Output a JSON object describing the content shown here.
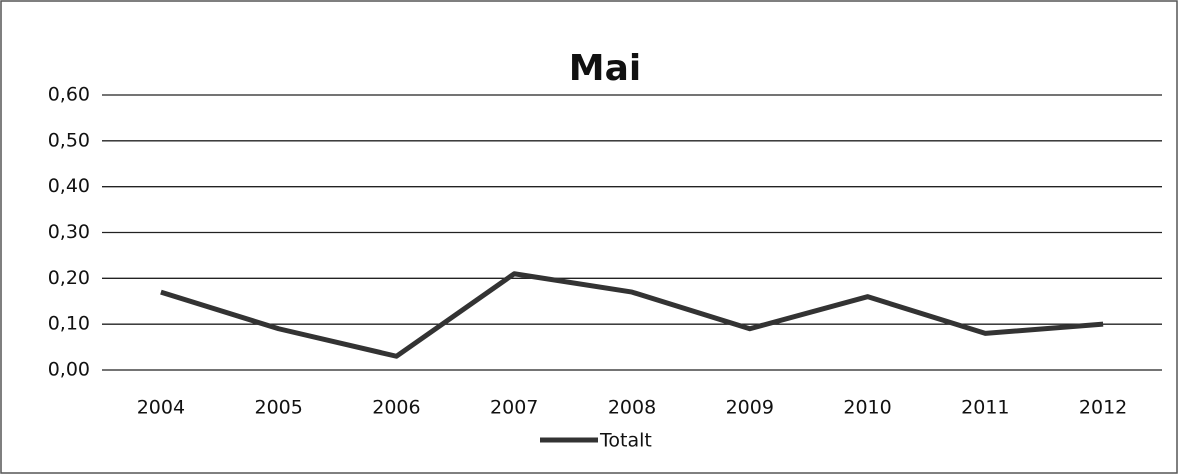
{
  "chart_data": {
    "type": "line",
    "title": "Mai",
    "categories": [
      "2004",
      "2005",
      "2006",
      "2007",
      "2008",
      "2009",
      "2010",
      "2011",
      "2012"
    ],
    "series": [
      {
        "name": "Totalt",
        "color": "#333333",
        "values": [
          0.17,
          0.09,
          0.03,
          0.21,
          0.17,
          0.09,
          0.16,
          0.08,
          0.1
        ]
      }
    ],
    "ylim": [
      0,
      0.6
    ],
    "yticks": [
      {
        "value": 0,
        "label": "0,00"
      },
      {
        "value": 0.1,
        "label": "0,10"
      },
      {
        "value": 0.2,
        "label": "0,20"
      },
      {
        "value": 0.3,
        "label": "0,30"
      },
      {
        "value": 0.4,
        "label": "0,40"
      },
      {
        "value": 0.5,
        "label": "0,50"
      },
      {
        "value": 0.6,
        "label": "0,60"
      }
    ],
    "grid": true,
    "legend": "bottom"
  }
}
